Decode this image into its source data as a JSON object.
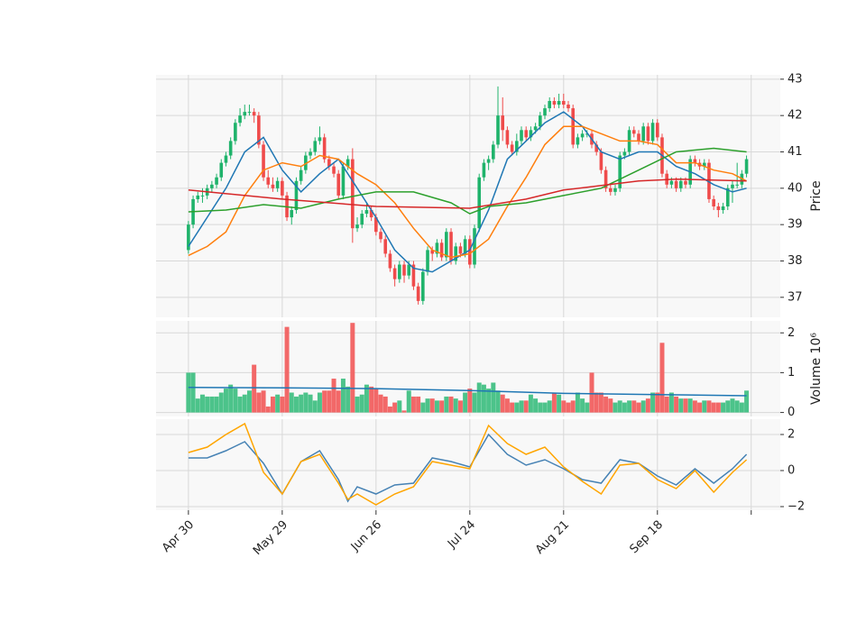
{
  "chart_data": [
    {
      "type": "candlestick",
      "ylabel": "Price",
      "ylim": [
        36.45,
        43.12
      ],
      "yticks": [
        37,
        38,
        39,
        40,
        41,
        42,
        43
      ],
      "up_color": "#1fb36b",
      "down_color": "#ef4b4b",
      "grid": true,
      "candles": [
        [
          38.3,
          39.1,
          38.2,
          39.0
        ],
        [
          39.0,
          39.8,
          38.9,
          39.7
        ],
        [
          39.7,
          39.9,
          39.6,
          39.8
        ],
        [
          39.8,
          40.0,
          39.6,
          39.8
        ],
        [
          39.8,
          40.1,
          39.7,
          40.0
        ],
        [
          40.0,
          40.2,
          39.9,
          40.1
        ],
        [
          40.1,
          40.4,
          40.0,
          40.3
        ],
        [
          40.3,
          40.8,
          40.2,
          40.7
        ],
        [
          40.7,
          41.0,
          40.6,
          40.9
        ],
        [
          40.9,
          41.4,
          40.8,
          41.3
        ],
        [
          41.3,
          41.9,
          41.2,
          41.8
        ],
        [
          41.8,
          42.2,
          41.7,
          42.0
        ],
        [
          42.0,
          42.3,
          41.9,
          42.1
        ],
        [
          42.1,
          42.3,
          42.0,
          42.1
        ],
        [
          42.1,
          42.2,
          41.8,
          42.0
        ],
        [
          42.0,
          42.1,
          41.1,
          41.2
        ],
        [
          41.2,
          41.3,
          40.2,
          40.3
        ],
        [
          40.3,
          40.5,
          40.0,
          40.1
        ],
        [
          40.1,
          40.3,
          39.9,
          40.0
        ],
        [
          40.0,
          40.3,
          39.9,
          40.2
        ],
        [
          40.2,
          40.3,
          39.7,
          39.8
        ],
        [
          39.8,
          39.9,
          39.1,
          39.2
        ],
        [
          39.2,
          39.5,
          39.0,
          39.4
        ],
        [
          39.4,
          40.3,
          39.3,
          40.2
        ],
        [
          40.2,
          40.6,
          40.1,
          40.5
        ],
        [
          40.5,
          41.0,
          40.4,
          40.9
        ],
        [
          40.9,
          41.1,
          40.8,
          41.0
        ],
        [
          41.0,
          41.4,
          40.9,
          41.3
        ],
        [
          41.3,
          41.7,
          41.2,
          41.4
        ],
        [
          41.4,
          41.5,
          40.7,
          40.8
        ],
        [
          40.8,
          40.9,
          40.5,
          40.6
        ],
        [
          40.6,
          40.7,
          40.3,
          40.4
        ],
        [
          40.4,
          40.5,
          39.7,
          39.8
        ],
        [
          39.8,
          40.7,
          39.7,
          40.6
        ],
        [
          40.6,
          40.9,
          40.5,
          40.8
        ],
        [
          40.8,
          41.1,
          38.5,
          38.9
        ],
        [
          38.9,
          39.2,
          38.8,
          39.0
        ],
        [
          39.0,
          39.4,
          38.9,
          39.3
        ],
        [
          39.3,
          39.6,
          39.2,
          39.4
        ],
        [
          39.4,
          39.5,
          39.1,
          39.2
        ],
        [
          39.2,
          39.3,
          38.7,
          38.8
        ],
        [
          38.8,
          38.9,
          38.5,
          38.6
        ],
        [
          38.6,
          38.7,
          38.1,
          38.2
        ],
        [
          38.2,
          38.3,
          37.7,
          37.8
        ],
        [
          37.8,
          37.9,
          37.3,
          37.5
        ],
        [
          37.5,
          38.0,
          37.4,
          37.9
        ],
        [
          37.9,
          38.0,
          37.4,
          37.6
        ],
        [
          37.6,
          38.0,
          37.5,
          37.9
        ],
        [
          37.9,
          38.0,
          37.2,
          37.3
        ],
        [
          37.3,
          37.4,
          36.8,
          36.9
        ],
        [
          36.9,
          37.8,
          36.8,
          37.7
        ],
        [
          37.7,
          38.4,
          37.6,
          38.3
        ],
        [
          38.3,
          38.4,
          38.0,
          38.2
        ],
        [
          38.2,
          38.6,
          38.1,
          38.5
        ],
        [
          38.5,
          38.6,
          38.0,
          38.1
        ],
        [
          38.1,
          38.9,
          38.0,
          38.8
        ],
        [
          38.8,
          38.9,
          37.9,
          38.0
        ],
        [
          38.0,
          38.5,
          37.9,
          38.4
        ],
        [
          38.4,
          38.5,
          38.1,
          38.2
        ],
        [
          38.2,
          38.7,
          38.1,
          38.6
        ],
        [
          38.6,
          38.7,
          37.8,
          37.9
        ],
        [
          37.9,
          39.0,
          37.8,
          38.9
        ],
        [
          38.9,
          40.4,
          38.8,
          40.3
        ],
        [
          40.3,
          40.8,
          40.2,
          40.7
        ],
        [
          40.7,
          40.9,
          40.5,
          40.8
        ],
        [
          40.8,
          41.3,
          40.7,
          41.2
        ],
        [
          41.2,
          42.8,
          41.1,
          42.0
        ],
        [
          42.0,
          42.5,
          41.3,
          41.6
        ],
        [
          41.6,
          41.7,
          41.1,
          41.2
        ],
        [
          41.2,
          41.3,
          40.9,
          41.0
        ],
        [
          41.0,
          41.5,
          40.9,
          41.3
        ],
        [
          41.3,
          41.7,
          41.2,
          41.6
        ],
        [
          41.6,
          41.7,
          41.3,
          41.4
        ],
        [
          41.4,
          41.7,
          41.3,
          41.6
        ],
        [
          41.6,
          41.8,
          41.5,
          41.7
        ],
        [
          41.7,
          42.1,
          41.6,
          42.0
        ],
        [
          42.0,
          42.3,
          41.9,
          42.2
        ],
        [
          42.2,
          42.5,
          42.1,
          42.4
        ],
        [
          42.4,
          42.5,
          42.2,
          42.3
        ],
        [
          42.3,
          42.6,
          42.2,
          42.4
        ],
        [
          42.4,
          42.6,
          42.2,
          42.3
        ],
        [
          42.3,
          42.4,
          42.1,
          42.2
        ],
        [
          42.2,
          42.3,
          41.1,
          41.2
        ],
        [
          41.2,
          41.5,
          41.1,
          41.4
        ],
        [
          41.4,
          41.6,
          41.3,
          41.5
        ],
        [
          41.5,
          41.6,
          41.4,
          41.5
        ],
        [
          41.5,
          41.6,
          41.1,
          41.2
        ],
        [
          41.2,
          41.3,
          40.9,
          41.0
        ],
        [
          41.0,
          41.1,
          40.4,
          40.5
        ],
        [
          40.5,
          40.6,
          39.9,
          40.0
        ],
        [
          40.0,
          40.1,
          39.8,
          39.9
        ],
        [
          39.9,
          40.1,
          39.8,
          40.0
        ],
        [
          40.0,
          41.0,
          39.9,
          40.9
        ],
        [
          40.9,
          41.1,
          40.8,
          41.0
        ],
        [
          41.0,
          41.7,
          40.9,
          41.6
        ],
        [
          41.6,
          41.7,
          41.4,
          41.5
        ],
        [
          41.5,
          41.6,
          41.2,
          41.3
        ],
        [
          41.3,
          41.8,
          41.2,
          41.7
        ],
        [
          41.7,
          41.8,
          41.2,
          41.3
        ],
        [
          41.3,
          41.9,
          41.2,
          41.8
        ],
        [
          41.8,
          41.9,
          41.3,
          41.4
        ],
        [
          41.4,
          41.5,
          40.3,
          40.4
        ],
        [
          40.4,
          40.5,
          40.0,
          40.1
        ],
        [
          40.1,
          40.3,
          40.0,
          40.2
        ],
        [
          40.2,
          40.3,
          39.9,
          40.0
        ],
        [
          40.0,
          40.3,
          39.9,
          40.2
        ],
        [
          40.2,
          40.3,
          40.0,
          40.1
        ],
        [
          40.1,
          40.9,
          40.0,
          40.8
        ],
        [
          40.8,
          40.9,
          40.6,
          40.7
        ],
        [
          40.7,
          40.8,
          40.5,
          40.6
        ],
        [
          40.6,
          40.8,
          40.5,
          40.7
        ],
        [
          40.7,
          40.8,
          39.6,
          39.7
        ],
        [
          39.7,
          39.8,
          39.4,
          39.5
        ],
        [
          39.5,
          39.6,
          39.2,
          39.4
        ],
        [
          39.4,
          39.6,
          39.3,
          39.5
        ],
        [
          39.5,
          40.1,
          39.4,
          40.0
        ],
        [
          40.0,
          40.2,
          39.6,
          40.1
        ],
        [
          40.1,
          40.7,
          40.0,
          40.1
        ],
        [
          40.1,
          40.5,
          40.0,
          40.4
        ],
        [
          40.4,
          40.9,
          40.3,
          40.8
        ]
      ],
      "series": [
        {
          "color": "#1f77b4",
          "x": [
            0,
            4,
            8,
            12,
            16,
            20,
            24,
            28,
            32,
            36,
            40,
            44,
            48,
            52,
            56,
            60,
            64,
            68,
            72,
            76,
            80,
            84,
            88,
            92,
            96,
            100,
            104,
            108,
            112,
            116,
            119
          ],
          "values": [
            38.4,
            39.2,
            40.0,
            41.0,
            41.4,
            40.5,
            39.9,
            40.4,
            40.8,
            40.0,
            39.2,
            38.3,
            37.8,
            37.7,
            38.0,
            38.3,
            39.4,
            40.8,
            41.3,
            41.8,
            42.1,
            41.7,
            41.0,
            40.8,
            41.0,
            41.0,
            40.6,
            40.4,
            40.1,
            39.9,
            40.0
          ]
        },
        {
          "color": "#ff7f0e",
          "x": [
            0,
            4,
            8,
            12,
            16,
            20,
            24,
            28,
            32,
            36,
            40,
            44,
            48,
            52,
            56,
            60,
            64,
            68,
            72,
            76,
            80,
            84,
            88,
            92,
            96,
            100,
            104,
            108,
            112,
            116,
            119
          ],
          "values": [
            38.15,
            38.4,
            38.8,
            39.8,
            40.5,
            40.7,
            40.6,
            40.9,
            40.8,
            40.4,
            40.1,
            39.6,
            38.9,
            38.3,
            38.1,
            38.2,
            38.6,
            39.5,
            40.3,
            41.2,
            41.7,
            41.7,
            41.5,
            41.3,
            41.3,
            41.2,
            40.7,
            40.7,
            40.5,
            40.4,
            40.2
          ]
        },
        {
          "color": "#2ca02c",
          "x": [
            0,
            8,
            16,
            24,
            32,
            40,
            48,
            56,
            60,
            64,
            72,
            80,
            88,
            96,
            104,
            112,
            119
          ],
          "values": [
            39.35,
            39.4,
            39.55,
            39.45,
            39.7,
            39.9,
            39.9,
            39.6,
            39.3,
            39.5,
            39.6,
            39.8,
            40.0,
            40.5,
            41.0,
            41.1,
            41.0
          ]
        },
        {
          "color": "#d62728",
          "x": [
            0,
            20,
            40,
            60,
            72,
            80,
            96,
            104,
            119
          ],
          "values": [
            39.95,
            39.7,
            39.5,
            39.45,
            39.7,
            39.95,
            40.2,
            40.25,
            40.2
          ]
        }
      ]
    },
    {
      "type": "bar",
      "ylabel": "Volume  10⁶",
      "ylim": [
        -0.1,
        2.3
      ],
      "yticks": [
        0,
        1,
        2
      ],
      "up_color": "#4cc38a",
      "down_color": "#f26868",
      "grid": true,
      "values": [
        1.0,
        1.0,
        0.35,
        0.45,
        0.4,
        0.4,
        0.4,
        0.5,
        0.6,
        0.7,
        0.6,
        0.4,
        0.45,
        0.55,
        1.2,
        0.5,
        0.55,
        0.15,
        0.4,
        0.45,
        0.4,
        2.15,
        0.5,
        0.4,
        0.45,
        0.5,
        0.45,
        0.3,
        0.5,
        0.55,
        0.55,
        0.85,
        0.55,
        0.85,
        0.65,
        2.25,
        0.4,
        0.45,
        0.7,
        0.65,
        0.6,
        0.45,
        0.4,
        0.15,
        0.25,
        0.3,
        0.05,
        0.55,
        0.4,
        0.4,
        0.25,
        0.35,
        0.35,
        0.3,
        0.3,
        0.4,
        0.4,
        0.35,
        0.3,
        0.5,
        0.6,
        0.5,
        0.75,
        0.7,
        0.6,
        0.75,
        0.55,
        0.45,
        0.35,
        0.25,
        0.25,
        0.3,
        0.3,
        0.45,
        0.35,
        0.25,
        0.25,
        0.3,
        0.5,
        0.45,
        0.3,
        0.25,
        0.3,
        0.5,
        0.35,
        0.25,
        1.0,
        0.5,
        0.5,
        0.4,
        0.35,
        0.25,
        0.3,
        0.25,
        0.3,
        0.3,
        0.25,
        0.3,
        0.35,
        0.5,
        0.5,
        1.75,
        0.4,
        0.5,
        0.4,
        0.35,
        0.35,
        0.35,
        0.3,
        0.25,
        0.3,
        0.3,
        0.25,
        0.25,
        0.25,
        0.3,
        0.35,
        0.3,
        0.25,
        0.55
      ],
      "series": [
        {
          "color": "#1f77b4",
          "x": [
            0,
            20,
            40,
            60,
            80,
            100,
            119
          ],
          "values": [
            0.63,
            0.62,
            0.6,
            0.55,
            0.48,
            0.45,
            0.42
          ]
        }
      ]
    },
    {
      "type": "line",
      "ylim": [
        -2.2,
        2.85
      ],
      "yticks": [
        2,
        0,
        {
          "value": -2,
          "label": "−2"
        }
      ],
      "grid": true,
      "xlim": [
        -6.9,
        126.2
      ],
      "xticks": [
        {
          "value": 0,
          "label": "Apr 30"
        },
        {
          "value": 20,
          "label": "May 29"
        },
        {
          "value": 40,
          "label": "Jun 26"
        },
        {
          "value": 60,
          "label": "Jul 24"
        },
        {
          "value": 80,
          "label": "Aug 21"
        },
        {
          "value": 100,
          "label": "Sep 18"
        },
        {
          "value": 120,
          "label": null
        }
      ],
      "series": [
        {
          "color": "#4682b4",
          "x": [
            0,
            4,
            8,
            12,
            16,
            20,
            24,
            28,
            32,
            34,
            36,
            40,
            44,
            48,
            52,
            56,
            60,
            64,
            68,
            72,
            76,
            80,
            84,
            88,
            92,
            96,
            100,
            104,
            108,
            112,
            116,
            119
          ],
          "values": [
            0.7,
            0.7,
            1.1,
            1.6,
            0.4,
            -1.3,
            0.5,
            1.1,
            -0.5,
            -1.7,
            -0.9,
            -1.3,
            -0.8,
            -0.7,
            0.7,
            0.5,
            0.2,
            2.0,
            0.9,
            0.3,
            0.6,
            0.1,
            -0.5,
            -0.7,
            0.6,
            0.4,
            -0.3,
            -0.8,
            0.1,
            -0.7,
            0.1,
            0.9
          ]
        },
        {
          "color": "#ffa500",
          "x": [
            0,
            4,
            8,
            12,
            16,
            20,
            24,
            28,
            32,
            34,
            36,
            40,
            44,
            48,
            52,
            56,
            60,
            64,
            68,
            72,
            76,
            80,
            84,
            88,
            92,
            96,
            100,
            104,
            108,
            112,
            116,
            119
          ],
          "values": [
            1.0,
            1.3,
            2.0,
            2.6,
            -0.1,
            -1.3,
            0.5,
            0.9,
            -0.7,
            -1.6,
            -1.3,
            -1.9,
            -1.3,
            -0.9,
            0.5,
            0.3,
            0.1,
            2.5,
            1.5,
            0.9,
            1.3,
            0.2,
            -0.6,
            -1.3,
            0.3,
            0.4,
            -0.5,
            -1.0,
            0.0,
            -1.2,
            -0.1,
            0.6
          ]
        }
      ]
    }
  ]
}
